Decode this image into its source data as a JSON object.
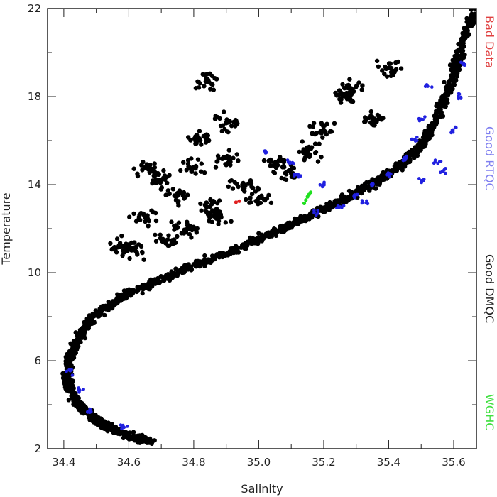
{
  "chart_data": {
    "type": "scatter",
    "title": "",
    "xlabel": "Salinity",
    "ylabel": "Temperature",
    "xlim": [
      34.35,
      35.67
    ],
    "ylim": [
      2,
      22
    ],
    "xticks": [
      "34.4",
      "34.6",
      "34.8",
      "35.0",
      "35.2",
      "35.4",
      "35.6"
    ],
    "yticks": [
      "2",
      "6",
      "10",
      "14",
      "18",
      "22"
    ],
    "grid": false,
    "legend_placement": "right, rotated vertical text",
    "series": [
      {
        "name": "Good DMQC",
        "color": "#000000",
        "description_points": "dense T-S curve",
        "curve": [
          [
            34.67,
            2.3
          ],
          [
            34.6,
            2.6
          ],
          [
            34.53,
            3.0
          ],
          [
            34.47,
            3.6
          ],
          [
            34.43,
            4.3
          ],
          [
            34.41,
            5.2
          ],
          [
            34.42,
            6.2
          ],
          [
            34.45,
            7.2
          ],
          [
            34.5,
            8.1
          ],
          [
            34.58,
            8.9
          ],
          [
            34.68,
            9.6
          ],
          [
            34.8,
            10.3
          ],
          [
            34.92,
            11.0
          ],
          [
            35.03,
            11.7
          ],
          [
            35.13,
            12.4
          ],
          [
            35.22,
            13.0
          ],
          [
            35.3,
            13.6
          ],
          [
            35.38,
            14.3
          ],
          [
            35.45,
            15.0
          ],
          [
            35.5,
            15.8
          ],
          [
            35.55,
            17.0
          ],
          [
            35.59,
            18.5
          ],
          [
            35.62,
            20.0
          ],
          [
            35.66,
            21.9
          ]
        ],
        "scatter_cloud": [
          [
            34.7,
            14.2
          ],
          [
            34.75,
            13.5
          ],
          [
            34.8,
            14.8
          ],
          [
            34.85,
            13.0
          ],
          [
            34.9,
            15.2
          ],
          [
            34.95,
            14.0
          ],
          [
            35.0,
            13.4
          ],
          [
            35.05,
            15.0
          ],
          [
            34.88,
            12.5
          ],
          [
            34.78,
            12.0
          ],
          [
            34.72,
            11.5
          ],
          [
            34.65,
            12.5
          ],
          [
            34.62,
            11.0
          ],
          [
            34.58,
            11.2
          ],
          [
            34.82,
            16.0
          ],
          [
            34.9,
            16.8
          ],
          [
            34.84,
            18.7
          ],
          [
            34.66,
            14.7
          ],
          [
            35.1,
            14.5
          ],
          [
            35.15,
            15.5
          ],
          [
            35.2,
            16.5
          ],
          [
            35.27,
            18.0
          ],
          [
            35.28,
            18.4
          ],
          [
            35.35,
            17.0
          ],
          [
            35.4,
            19.3
          ]
        ]
      },
      {
        "name": "Good RTQC",
        "color": "#2020e0",
        "points": [
          [
            35.5,
            14.2
          ],
          [
            35.55,
            15.0
          ],
          [
            35.6,
            16.5
          ],
          [
            35.62,
            18.0
          ],
          [
            35.63,
            19.5
          ],
          [
            35.25,
            13.0
          ],
          [
            35.3,
            13.5
          ],
          [
            35.35,
            14.0
          ],
          [
            35.4,
            14.5
          ],
          [
            35.45,
            15.2
          ],
          [
            35.02,
            15.5
          ],
          [
            35.1,
            15.0
          ],
          [
            35.12,
            14.4
          ],
          [
            35.2,
            14.0
          ],
          [
            35.5,
            17.0
          ],
          [
            35.52,
            18.5
          ],
          [
            35.48,
            16.0
          ],
          [
            34.45,
            4.7
          ],
          [
            34.48,
            3.7
          ],
          [
            34.58,
            3.0
          ],
          [
            34.42,
            5.5
          ],
          [
            35.18,
            12.8
          ],
          [
            35.33,
            13.2
          ],
          [
            35.57,
            14.6
          ]
        ]
      },
      {
        "name": "Bad Data",
        "color": "#e02020",
        "points": [
          [
            34.93,
            13.2
          ],
          [
            34.94,
            13.25
          ]
        ]
      },
      {
        "name": "WGHC",
        "color": "#20e020",
        "points": [
          [
            35.14,
            13.15
          ],
          [
            35.145,
            13.3
          ],
          [
            35.15,
            13.45
          ],
          [
            35.155,
            13.55
          ],
          [
            35.16,
            13.65
          ]
        ]
      }
    ],
    "legend": [
      {
        "label": "Bad Data",
        "color": "#e04040"
      },
      {
        "label": "Good RTQC",
        "color": "#8080f0"
      },
      {
        "label": "Good DMQC",
        "color": "#222222"
      },
      {
        "label": "WGHC",
        "color": "#40e040"
      }
    ]
  }
}
